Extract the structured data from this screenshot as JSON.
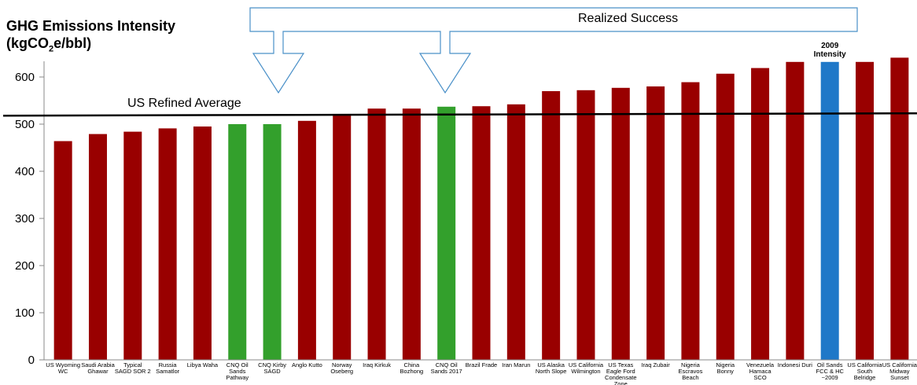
{
  "chart_data": {
    "type": "bar",
    "title_line1": "GHG Emissions Intensity",
    "title_unit_pre": "(kgCO",
    "title_unit_sub": "2",
    "title_unit_post": "e/bbl)",
    "ylim": [
      0,
      650
    ],
    "yticks": [
      0,
      100,
      200,
      300,
      400,
      500,
      600
    ],
    "grid": false,
    "categories": [
      [
        "US Wyoming",
        "WC"
      ],
      [
        "Saudi Arabia",
        "Ghawar"
      ],
      [
        "Typical",
        "SAGD SOR 2"
      ],
      [
        "Russia",
        "Samatlor"
      ],
      [
        "Libya Waha"
      ],
      [
        "CNQ Oil",
        "Sands",
        "Pathway"
      ],
      [
        "CNQ Kirby",
        "SAGD"
      ],
      [
        "Anglo Kutto"
      ],
      [
        "Norway",
        "Oseberg"
      ],
      [
        "Iraq Kirkuk"
      ],
      [
        "China",
        "Bozhong"
      ],
      [
        "CNQ Oil",
        "Sands 2017"
      ],
      [
        "Brazil Frade"
      ],
      [
        "Iran Marun"
      ],
      [
        "US Alaska",
        "North Slope"
      ],
      [
        "US California",
        "Wilmington"
      ],
      [
        "US Texas",
        "Eagle Ford",
        "Condensate",
        "Zone"
      ],
      [
        "Iraq Zubair"
      ],
      [
        "Nigeria",
        "Escravos",
        "Beach"
      ],
      [
        "Nigeria",
        "Bonny"
      ],
      [
        "Venezuela",
        "Hamaca",
        "SCO"
      ],
      [
        "Indonesi Duri"
      ],
      [
        "Oil Sands",
        "FCC & HC",
        "~2009"
      ],
      [
        "US California",
        "South",
        "Belridge"
      ],
      [
        "US California",
        "Midway",
        "Sunset"
      ]
    ],
    "values": [
      464,
      479,
      484,
      491,
      495,
      500,
      500,
      507,
      519,
      533,
      533,
      537,
      538,
      542,
      570,
      572,
      577,
      580,
      589,
      607,
      619,
      632,
      632,
      632,
      641
    ],
    "colors": [
      "#990000",
      "#990000",
      "#990000",
      "#990000",
      "#990000",
      "#33A02C",
      "#33A02C",
      "#990000",
      "#990000",
      "#990000",
      "#990000",
      "#33A02C",
      "#990000",
      "#990000",
      "#990000",
      "#990000",
      "#990000",
      "#990000",
      "#990000",
      "#990000",
      "#990000",
      "#990000",
      "#1F78C8",
      "#990000",
      "#990000"
    ],
    "reference_line": {
      "label": "US Refined Average",
      "value_start": 518,
      "value_end": 523
    },
    "annotations": {
      "callout": "Realized Success",
      "highlight_line1": "2009",
      "highlight_line2": "Intensity",
      "highlight_index": 22
    }
  }
}
